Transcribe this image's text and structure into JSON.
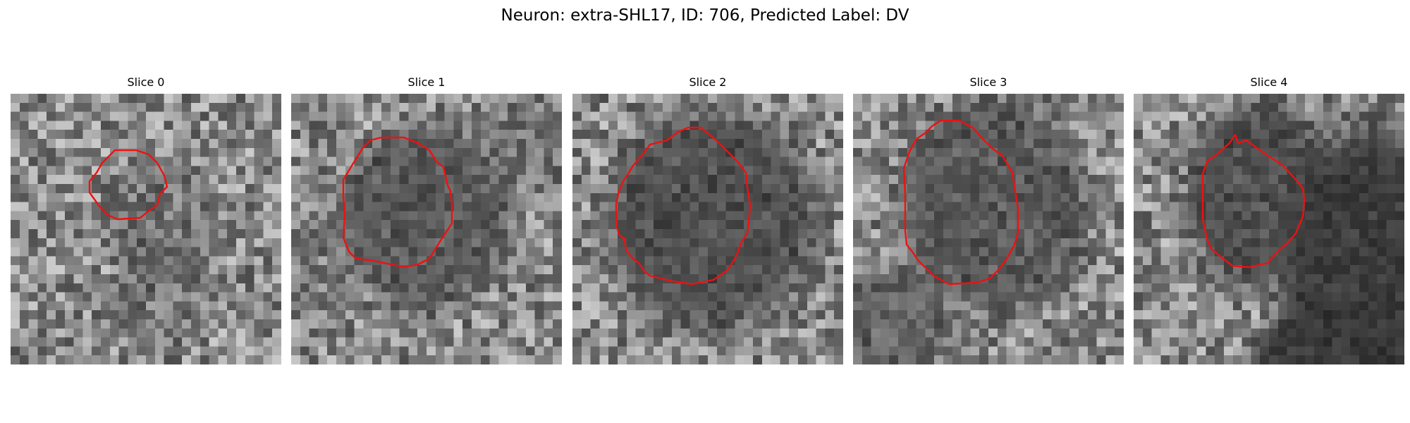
{
  "figure": {
    "title": "Neuron: extra-SHL17, ID: 706, Predicted Label: DV",
    "outline_color": "#ee1111"
  },
  "panels": [
    {
      "title": "Slice 0"
    },
    {
      "title": "Slice 1"
    },
    {
      "title": "Slice 2"
    },
    {
      "title": "Slice 3"
    },
    {
      "title": "Slice 4"
    }
  ]
}
